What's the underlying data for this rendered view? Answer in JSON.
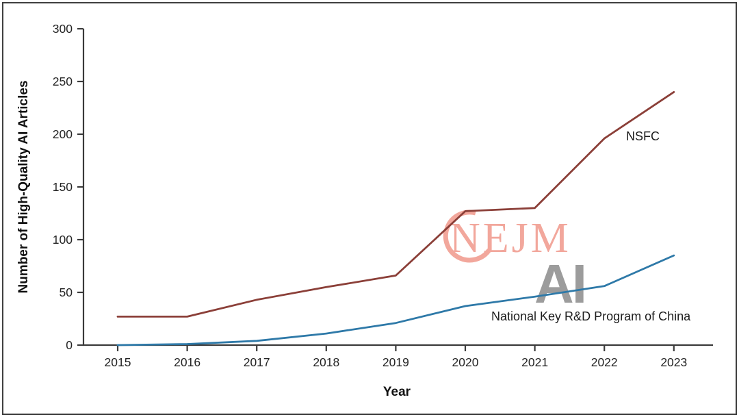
{
  "chart_data": {
    "type": "line",
    "title": "",
    "xlabel": "Year",
    "ylabel": "Number of High-Quality AI Articles",
    "x": [
      2015,
      2016,
      2017,
      2018,
      2019,
      2020,
      2021,
      2022,
      2023
    ],
    "y_ticks": [
      0,
      50,
      100,
      150,
      200,
      250,
      300
    ],
    "ylim": [
      0,
      300
    ],
    "grid": false,
    "legend": "inline-labels-next-to-lines",
    "series": [
      {
        "name": "NSFC",
        "color": "#8b3f38",
        "values": [
          27,
          27,
          43,
          55,
          66,
          127,
          130,
          196,
          240
        ]
      },
      {
        "name": "National Key R&D Program of China",
        "color": "#2e79a8",
        "values": [
          0,
          1,
          4,
          11,
          21,
          37,
          46,
          56,
          85
        ]
      }
    ]
  },
  "watermark": {
    "logo_text": "NEJM",
    "ai_text": "AI",
    "logo_color": "#f2a79c",
    "ai_color": "#9c9c9c"
  },
  "style": {
    "axis_color": "#3a3a3a",
    "background": "#ffffff",
    "border_color": "#3f3f3f"
  }
}
